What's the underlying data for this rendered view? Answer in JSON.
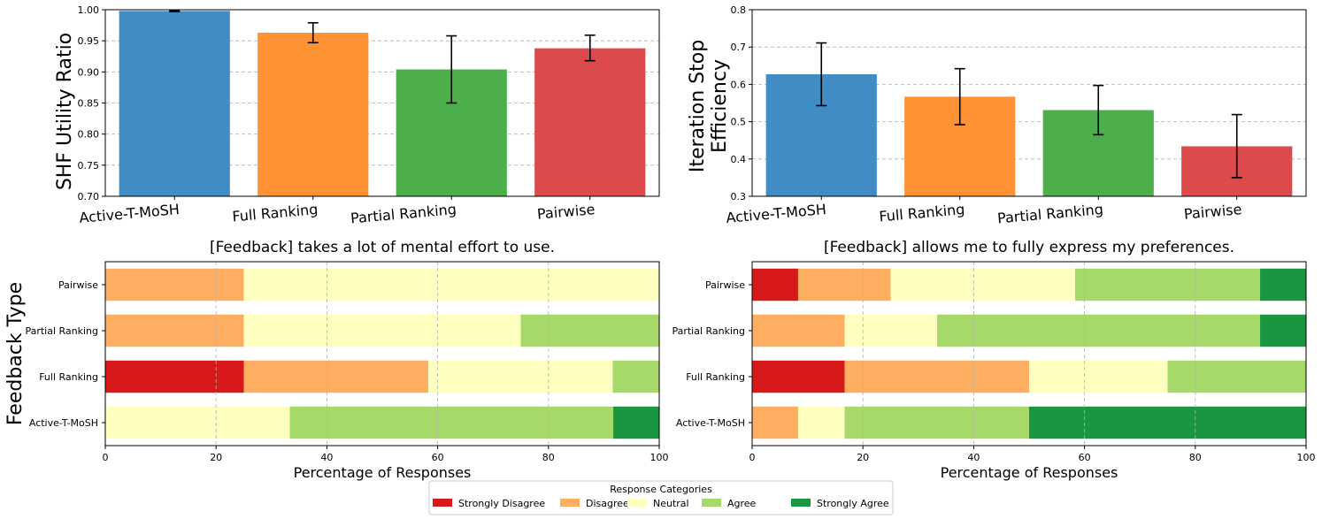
{
  "chart_data": [
    {
      "type": "bar",
      "categories": [
        "Active-T-MoSH",
        "Full Ranking",
        "Partial Ranking",
        "Pairwise"
      ],
      "values": [
        0.998,
        0.963,
        0.904,
        0.938
      ],
      "err_low": [
        0.997,
        0.947,
        0.85,
        0.918
      ],
      "err_high": [
        0.999,
        0.979,
        0.958,
        0.959
      ],
      "colors": [
        "#3f8dc4",
        "#ff9233",
        "#4caf4c",
        "#dd4a4b"
      ],
      "ylabel": "SHF Utility Ratio",
      "ylim": [
        0.7,
        1.0
      ],
      "yticks": [
        "0.70",
        "0.75",
        "0.80",
        "0.85",
        "0.90",
        "0.95",
        "1.00"
      ],
      "grid": true
    },
    {
      "type": "bar",
      "categories": [
        "Active-T-MoSH",
        "Full Ranking",
        "Partial Ranking",
        "Pairwise"
      ],
      "values": [
        0.627,
        0.567,
        0.531,
        0.434
      ],
      "err_low": [
        0.543,
        0.492,
        0.465,
        0.35
      ],
      "err_high": [
        0.711,
        0.642,
        0.597,
        0.519
      ],
      "colors": [
        "#3f8dc4",
        "#ff9233",
        "#4caf4c",
        "#dd4a4b"
      ],
      "ylabel_lines": [
        "Iteration Stop",
        "Efficiency"
      ],
      "ylim": [
        0.3,
        0.8
      ],
      "yticks": [
        "0.3",
        "0.4",
        "0.5",
        "0.6",
        "0.7",
        "0.8"
      ],
      "grid": true
    },
    {
      "type": "stacked-barh",
      "title": "[Feedback] takes a lot of mental effort to use.",
      "ylabel": "Feedback Type",
      "xlabel": "Percentage of Responses",
      "xlim": [
        0,
        100
      ],
      "xticks": [
        "0",
        "20",
        "40",
        "60",
        "80",
        "100"
      ],
      "categories": [
        "Pairwise",
        "Partial Ranking",
        "Full Ranking",
        "Active-T-MoSH"
      ],
      "series": [
        {
          "name": "Strongly Disagree",
          "values": [
            0,
            0,
            25,
            0
          ]
        },
        {
          "name": "Disagree",
          "values": [
            25,
            25,
            33.3,
            0
          ]
        },
        {
          "name": "Neutral",
          "values": [
            75,
            50,
            33.3,
            33.3
          ]
        },
        {
          "name": "Agree",
          "values": [
            0,
            25,
            8.4,
            58.4
          ]
        },
        {
          "name": "Strongly Agree",
          "values": [
            0,
            0,
            0,
            8.3
          ]
        }
      ]
    },
    {
      "type": "stacked-barh",
      "title": "[Feedback] allows me to fully express my preferences.",
      "xlabel": "Percentage of Responses",
      "xlim": [
        0,
        100
      ],
      "xticks": [
        "0",
        "20",
        "40",
        "60",
        "80",
        "100"
      ],
      "categories": [
        "Pairwise",
        "Partial Ranking",
        "Full Ranking",
        "Active-T-MoSH"
      ],
      "series": [
        {
          "name": "Strongly Disagree",
          "values": [
            8.3,
            0,
            16.7,
            0
          ]
        },
        {
          "name": "Disagree",
          "values": [
            16.7,
            16.7,
            33.3,
            8.3
          ]
        },
        {
          "name": "Neutral",
          "values": [
            33.3,
            16.7,
            25,
            8.4
          ]
        },
        {
          "name": "Agree",
          "values": [
            33.4,
            58.3,
            25,
            33.3
          ]
        },
        {
          "name": "Strongly Agree",
          "values": [
            8.3,
            8.3,
            0,
            50
          ]
        }
      ]
    }
  ],
  "legend": {
    "title": "Response Categories",
    "items": [
      "Strongly Disagree",
      "Disagree",
      "Neutral",
      "Agree",
      "Strongly Agree"
    ],
    "colors": [
      "#d7191c",
      "#fdae61",
      "#ffffbf",
      "#a6d96a",
      "#1a9641"
    ]
  }
}
